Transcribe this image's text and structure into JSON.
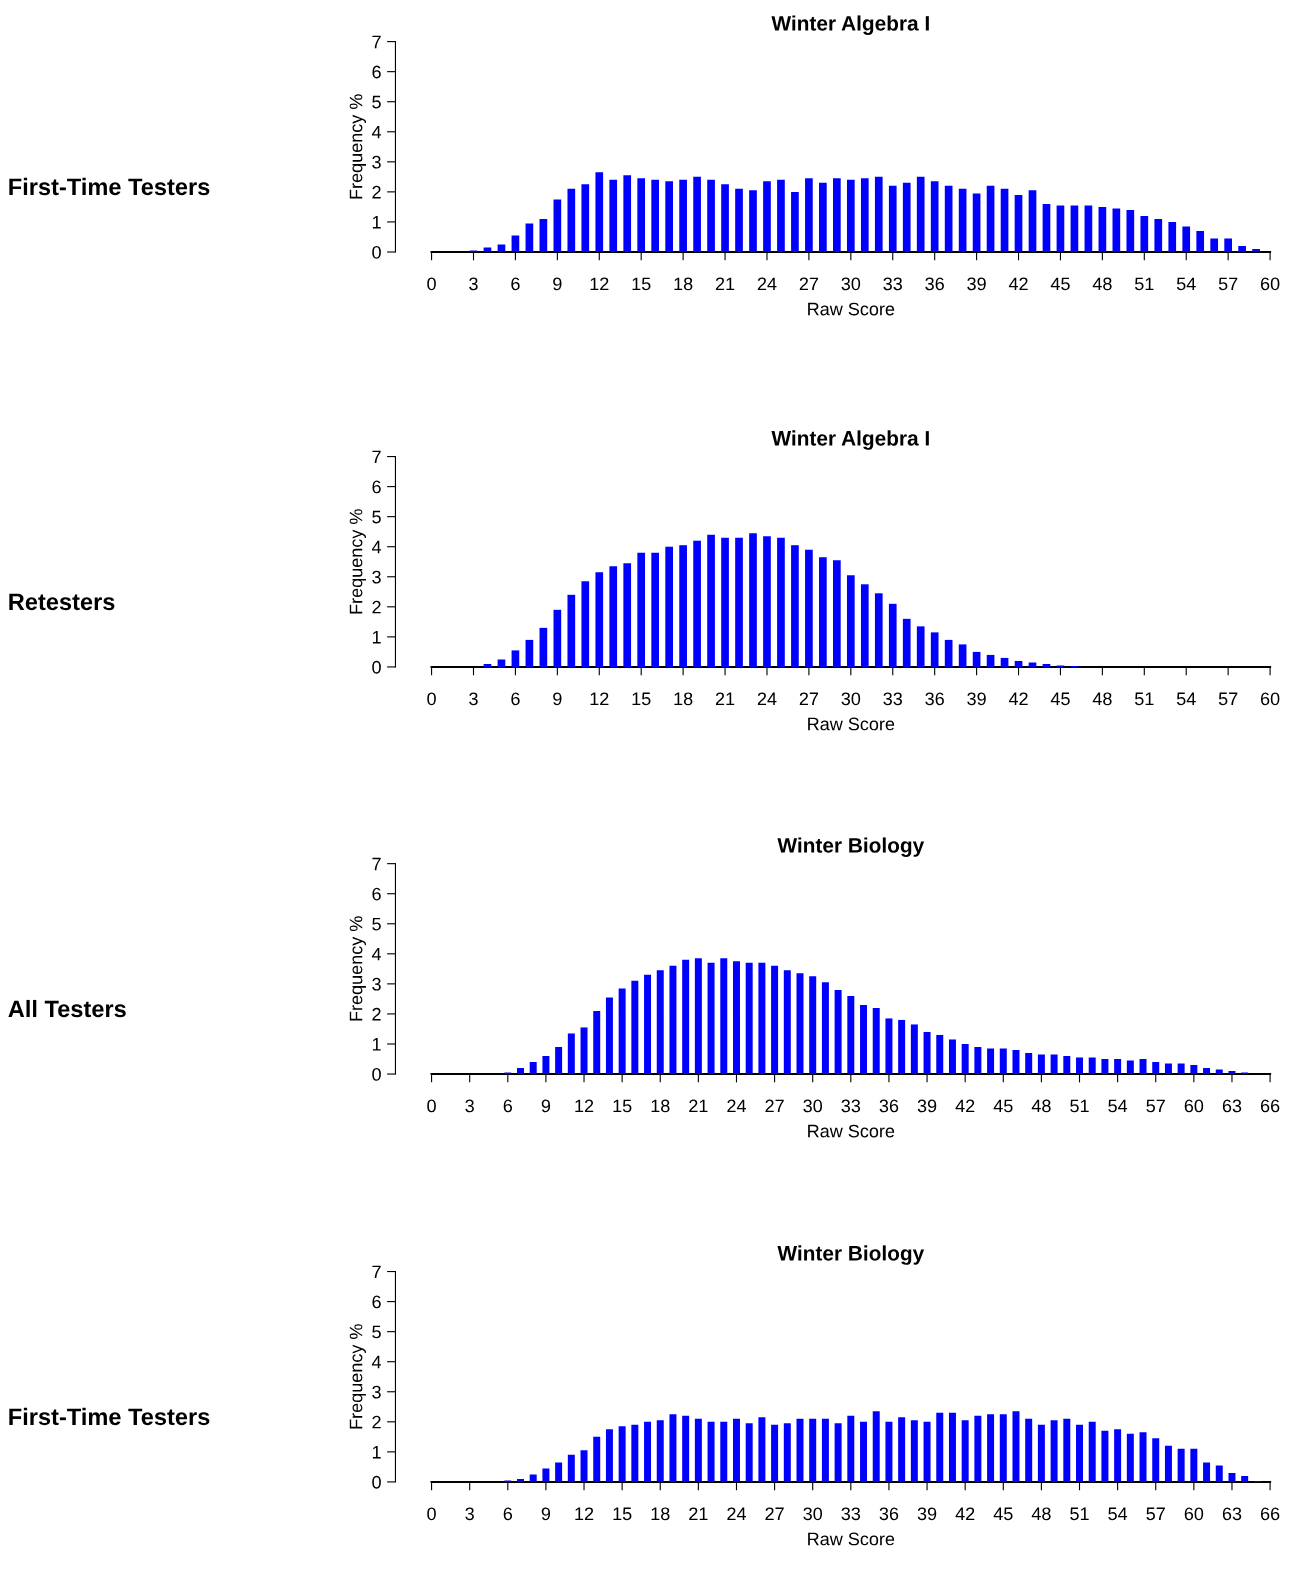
{
  "chart_data": [
    {
      "type": "bar",
      "title": "Winter Algebra I",
      "xlabel": "Raw Score",
      "ylabel": "Frequency %",
      "annotations": [
        "First-Time Testers"
      ],
      "color": "#0000ff",
      "grid": false,
      "x": [
        3,
        4,
        5,
        6,
        7,
        8,
        9,
        10,
        11,
        12,
        13,
        14,
        15,
        16,
        17,
        18,
        19,
        20,
        21,
        22,
        23,
        24,
        25,
        26,
        27,
        28,
        29,
        30,
        31,
        32,
        33,
        34,
        35,
        36,
        37,
        38,
        39,
        40,
        41,
        42,
        43,
        44,
        45,
        46,
        47,
        48,
        49,
        50,
        51,
        52,
        53,
        54,
        55,
        56,
        57,
        58,
        59
      ],
      "values": [
        0.05,
        0.15,
        0.25,
        0.55,
        0.95,
        1.1,
        1.75,
        2.1,
        2.25,
        2.65,
        2.4,
        2.55,
        2.45,
        2.4,
        2.35,
        2.4,
        2.5,
        2.4,
        2.25,
        2.1,
        2.05,
        2.35,
        2.4,
        2.0,
        2.45,
        2.3,
        2.45,
        2.4,
        2.45,
        2.5,
        2.2,
        2.3,
        2.5,
        2.35,
        2.2,
        2.1,
        1.95,
        2.2,
        2.1,
        1.9,
        2.05,
        1.6,
        1.55,
        1.55,
        1.55,
        1.5,
        1.45,
        1.4,
        1.2,
        1.1,
        1.0,
        0.85,
        0.7,
        0.45,
        0.45,
        0.2,
        0.1
      ],
      "xlim": [
        0,
        60
      ],
      "xticks": [
        0,
        3,
        6,
        9,
        12,
        15,
        18,
        21,
        24,
        27,
        30,
        33,
        36,
        39,
        42,
        45,
        48,
        51,
        54,
        57,
        60
      ],
      "ylim": [
        0,
        7
      ],
      "yticks": [
        0,
        1,
        2,
        3,
        4,
        5,
        6,
        7
      ]
    },
    {
      "type": "bar",
      "title": "Winter Algebra I",
      "xlabel": "Raw Score",
      "ylabel": "Frequency %",
      "annotations": [
        "Retesters"
      ],
      "color": "#0000ff",
      "grid": false,
      "x": [
        4,
        5,
        6,
        7,
        8,
        9,
        10,
        11,
        12,
        13,
        14,
        15,
        16,
        17,
        18,
        19,
        20,
        21,
        22,
        23,
        24,
        25,
        26,
        27,
        28,
        29,
        30,
        31,
        32,
        33,
        34,
        35,
        36,
        37,
        38,
        39,
        40,
        41,
        42,
        43,
        44,
        45,
        46
      ],
      "values": [
        0.1,
        0.25,
        0.55,
        0.9,
        1.3,
        1.9,
        2.4,
        2.85,
        3.15,
        3.35,
        3.45,
        3.8,
        3.8,
        4.0,
        4.05,
        4.2,
        4.4,
        4.3,
        4.3,
        4.45,
        4.35,
        4.3,
        4.05,
        3.9,
        3.65,
        3.55,
        3.05,
        2.75,
        2.45,
        2.1,
        1.6,
        1.35,
        1.15,
        0.9,
        0.75,
        0.5,
        0.4,
        0.3,
        0.2,
        0.15,
        0.1,
        0.05,
        0.03
      ],
      "xlim": [
        0,
        60
      ],
      "xticks": [
        0,
        3,
        6,
        9,
        12,
        15,
        18,
        21,
        24,
        27,
        30,
        33,
        36,
        39,
        42,
        45,
        48,
        51,
        54,
        57,
        60
      ],
      "ylim": [
        0,
        7
      ],
      "yticks": [
        0,
        1,
        2,
        3,
        4,
        5,
        6,
        7
      ]
    },
    {
      "type": "bar",
      "title": "Winter Biology",
      "xlabel": "Raw Score",
      "ylabel": "Frequency %",
      "annotations": [
        "All Testers"
      ],
      "color": "#0000ff",
      "grid": false,
      "x": [
        6,
        7,
        8,
        9,
        10,
        11,
        12,
        13,
        14,
        15,
        16,
        17,
        18,
        19,
        20,
        21,
        22,
        23,
        24,
        25,
        26,
        27,
        28,
        29,
        30,
        31,
        32,
        33,
        34,
        35,
        36,
        37,
        38,
        39,
        40,
        41,
        42,
        43,
        44,
        45,
        46,
        47,
        48,
        49,
        50,
        51,
        52,
        53,
        54,
        55,
        56,
        57,
        58,
        59,
        60,
        61,
        62,
        63,
        64
      ],
      "values": [
        0.05,
        0.2,
        0.4,
        0.6,
        0.9,
        1.35,
        1.55,
        2.1,
        2.55,
        2.85,
        3.1,
        3.3,
        3.45,
        3.6,
        3.8,
        3.85,
        3.7,
        3.85,
        3.75,
        3.7,
        3.7,
        3.6,
        3.45,
        3.35,
        3.25,
        3.05,
        2.8,
        2.6,
        2.3,
        2.2,
        1.85,
        1.8,
        1.65,
        1.4,
        1.3,
        1.15,
        1.0,
        0.9,
        0.85,
        0.85,
        0.8,
        0.7,
        0.65,
        0.65,
        0.6,
        0.55,
        0.55,
        0.5,
        0.5,
        0.45,
        0.5,
        0.4,
        0.35,
        0.35,
        0.3,
        0.2,
        0.15,
        0.1,
        0.05
      ],
      "xlim": [
        0,
        66
      ],
      "xticks": [
        0,
        3,
        6,
        9,
        12,
        15,
        18,
        21,
        24,
        27,
        30,
        33,
        36,
        39,
        42,
        45,
        48,
        51,
        54,
        57,
        60,
        63,
        66
      ],
      "ylim": [
        0,
        7
      ],
      "yticks": [
        0,
        1,
        2,
        3,
        4,
        5,
        6,
        7
      ]
    },
    {
      "type": "bar",
      "title": "Winter Biology",
      "xlabel": "Raw Score",
      "ylabel": "Frequency %",
      "annotations": [
        "First-Time Testers"
      ],
      "color": "#0000ff",
      "grid": false,
      "x": [
        6,
        7,
        8,
        9,
        10,
        11,
        12,
        13,
        14,
        15,
        16,
        17,
        18,
        19,
        20,
        21,
        22,
        23,
        24,
        25,
        26,
        27,
        28,
        29,
        30,
        31,
        32,
        33,
        34,
        35,
        36,
        37,
        38,
        39,
        40,
        41,
        42,
        43,
        44,
        45,
        46,
        47,
        48,
        49,
        50,
        51,
        52,
        53,
        54,
        55,
        56,
        57,
        58,
        59,
        60,
        61,
        62,
        63,
        64,
        65
      ],
      "values": [
        0.05,
        0.1,
        0.25,
        0.45,
        0.65,
        0.9,
        1.05,
        1.5,
        1.75,
        1.85,
        1.9,
        2.0,
        2.05,
        2.25,
        2.2,
        2.1,
        2.0,
        2.0,
        2.1,
        1.95,
        2.15,
        1.9,
        1.95,
        2.1,
        2.1,
        2.1,
        1.95,
        2.2,
        2.0,
        2.35,
        2.0,
        2.15,
        2.05,
        2.0,
        2.3,
        2.3,
        2.05,
        2.2,
        2.25,
        2.25,
        2.35,
        2.1,
        1.9,
        2.05,
        2.1,
        1.9,
        2.0,
        1.7,
        1.75,
        1.6,
        1.65,
        1.45,
        1.2,
        1.1,
        1.1,
        0.65,
        0.55,
        0.3,
        0.2,
        0.03
      ],
      "xlim": [
        0,
        66
      ],
      "xticks": [
        0,
        3,
        6,
        9,
        12,
        15,
        18,
        21,
        24,
        27,
        30,
        33,
        36,
        39,
        42,
        45,
        48,
        51,
        54,
        57,
        60,
        63,
        66
      ],
      "ylim": [
        0,
        7
      ],
      "yticks": [
        0,
        1,
        2,
        3,
        4,
        5,
        6,
        7
      ]
    }
  ]
}
